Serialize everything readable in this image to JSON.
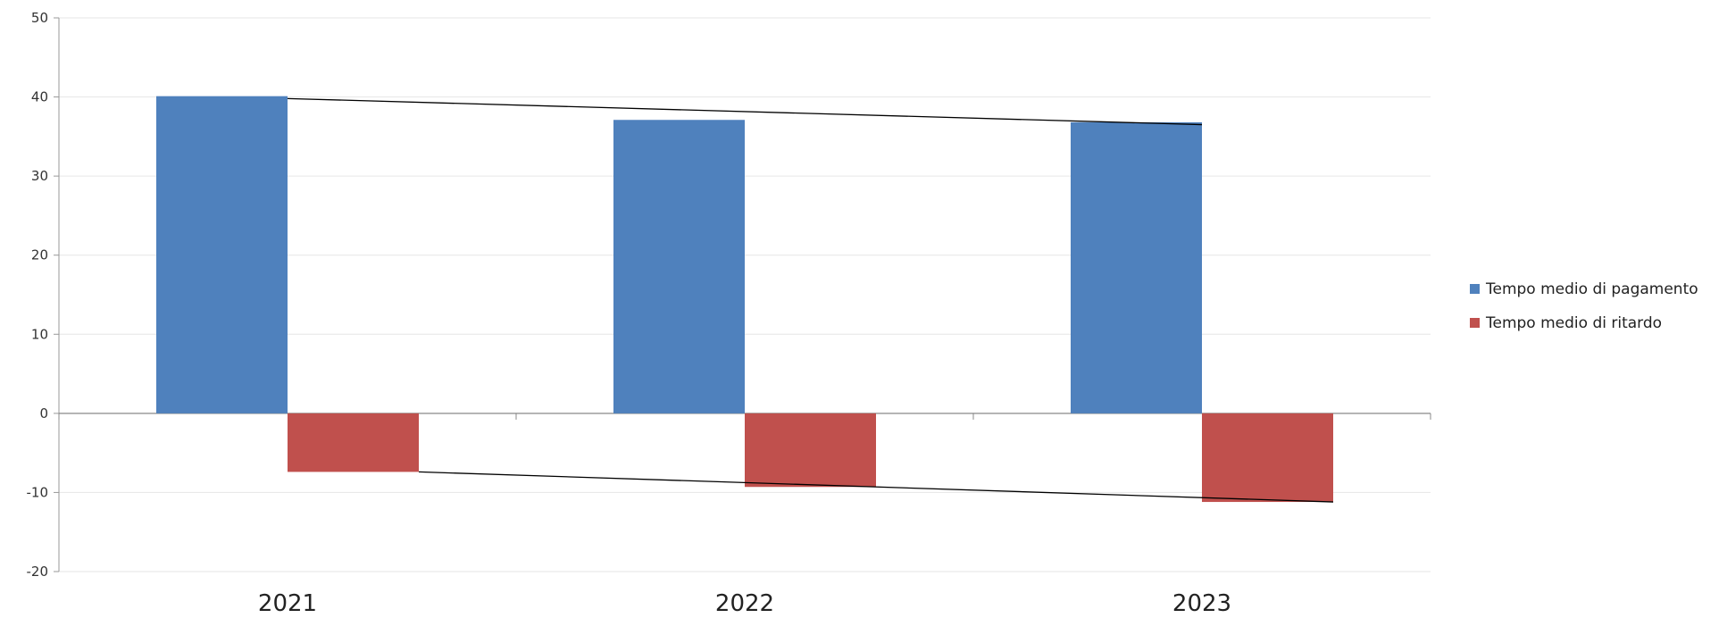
{
  "chart_data": {
    "type": "bar",
    "categories": [
      "2021",
      "2022",
      "2023"
    ],
    "series": [
      {
        "name": "Tempo medio di pagamento",
        "values": [
          40.1,
          37.1,
          36.8
        ],
        "color": "#4f81bd",
        "trend_line": [
          39.8,
          null,
          36.5
        ]
      },
      {
        "name": "Tempo medio di ritardo",
        "values": [
          -7.4,
          -9.3,
          -11.2
        ],
        "color": "#c0504d",
        "trend_line": [
          -7.4,
          null,
          -11.2
        ]
      }
    ],
    "yticks": [
      "50",
      "40",
      "30",
      "20",
      "10",
      "0",
      "-10",
      "-20"
    ],
    "ylim": [
      -20,
      50
    ],
    "grid": true,
    "legend_position": "right",
    "title": "",
    "xlabel": "",
    "ylabel": ""
  }
}
